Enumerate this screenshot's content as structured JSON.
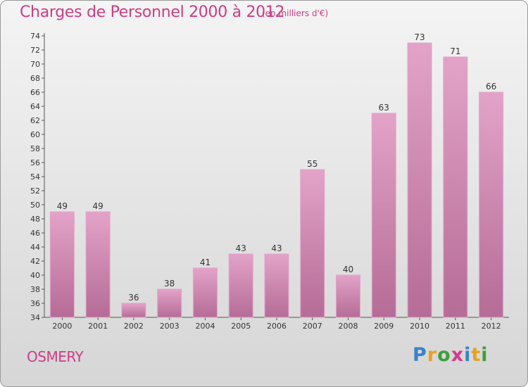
{
  "title": "Charges de Personnel 2000 à 2012",
  "subtitle": "(en milliers d'€)",
  "commune": "OSMERY",
  "logo": {
    "letters": [
      "P",
      "r",
      "o",
      "x",
      "i",
      "t",
      "i"
    ],
    "colors": [
      "#3a82c8",
      "#e9a21c",
      "#3aa03c",
      "#d63a8a",
      "#3a82c8",
      "#e9a21c",
      "#3aa03c"
    ]
  },
  "colors": {
    "bar": "#d98bb6",
    "bar_light": "#e3a3c8",
    "bar_dark": "#b56c96",
    "text": "#cc3d86"
  },
  "chart_data": {
    "type": "bar",
    "categories": [
      "2000",
      "2001",
      "2002",
      "2003",
      "2004",
      "2005",
      "2006",
      "2007",
      "2008",
      "2009",
      "2010",
      "2011",
      "2012"
    ],
    "values": [
      49,
      49,
      36,
      38,
      41,
      43,
      43,
      55,
      40,
      63,
      73,
      71,
      66
    ],
    "data_labels": [
      "49",
      "49",
      "36",
      "38",
      "41",
      "43",
      "43",
      "55",
      "40",
      "63",
      "73",
      "71",
      "66"
    ],
    "y_ticks": [
      "34",
      "36",
      "38",
      "40",
      "42",
      "44",
      "46",
      "48",
      "50",
      "52",
      "54",
      "56",
      "58",
      "60",
      "62",
      "64",
      "66",
      "68",
      "70",
      "72",
      "74"
    ],
    "ylim": [
      34,
      74
    ],
    "grid": false,
    "xlabel": "",
    "ylabel": ""
  }
}
